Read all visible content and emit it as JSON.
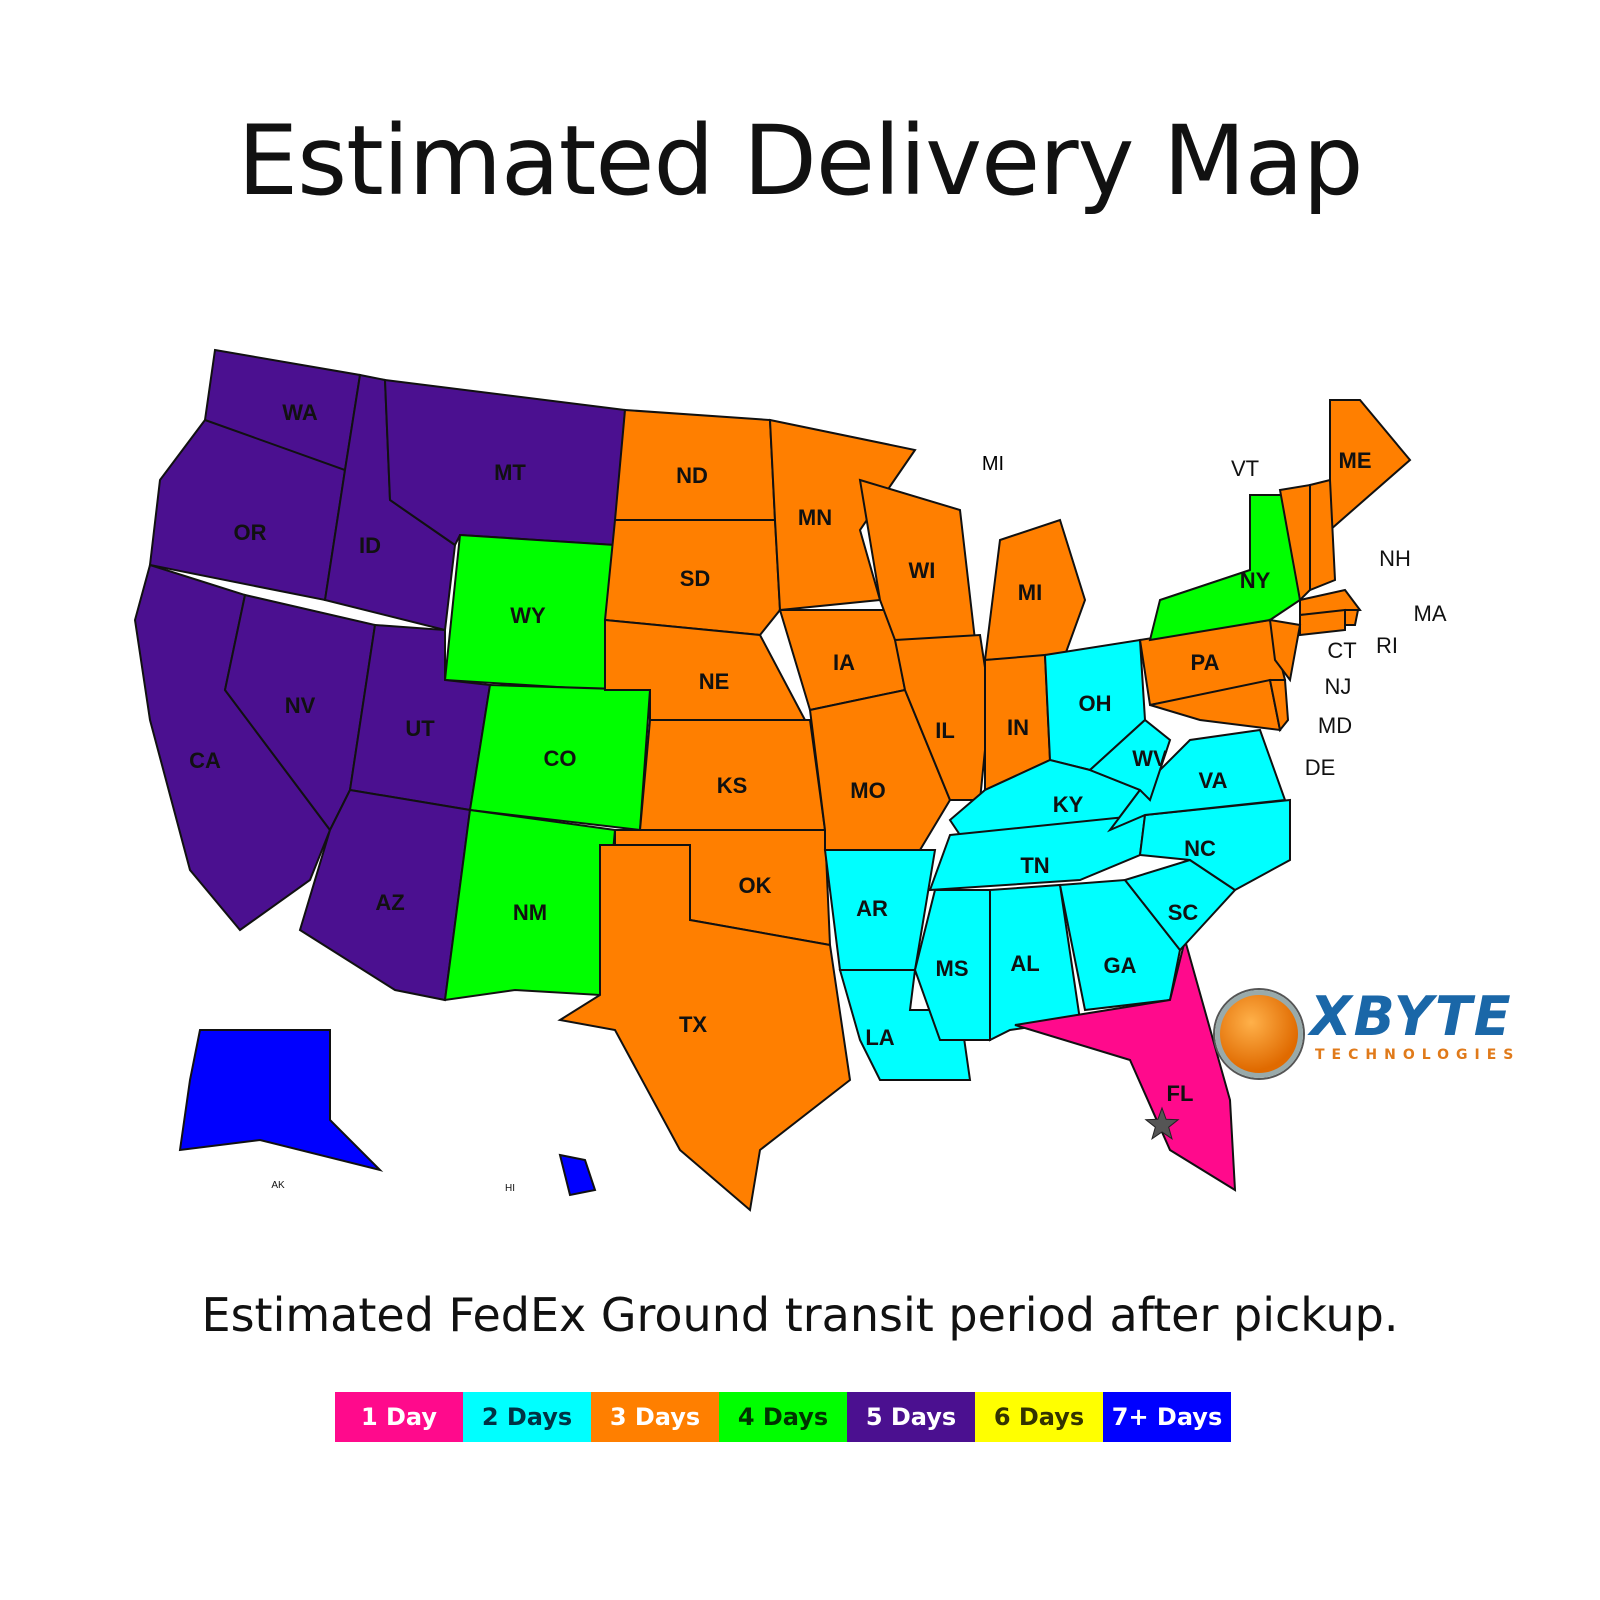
{
  "title": "Estimated Delivery Map",
  "subtitle": "Estimated FedEx Ground transit period after pickup.",
  "legend": [
    {
      "label": "1 Day",
      "days": 1,
      "color": "#ff0a8c",
      "text": "#ffffff"
    },
    {
      "label": "2 Days",
      "days": 2,
      "color": "#00ffff",
      "text": "#003344"
    },
    {
      "label": "3 Days",
      "days": 3,
      "color": "#ff7f00",
      "text": "#ffffff"
    },
    {
      "label": "4 Days",
      "days": 4,
      "color": "#00ff00",
      "text": "#003300"
    },
    {
      "label": "5 Days",
      "days": 5,
      "color": "#4b1090",
      "text": "#ffffff"
    },
    {
      "label": "6 Days",
      "days": 6,
      "color": "#ffff00",
      "text": "#333300"
    },
    {
      "label": "7+ Days",
      "days": 7,
      "color": "#0000ff",
      "text": "#ffffff"
    }
  ],
  "states": [
    {
      "code": "WA",
      "days": 5
    },
    {
      "code": "OR",
      "days": 5
    },
    {
      "code": "CA",
      "days": 5
    },
    {
      "code": "NV",
      "days": 5
    },
    {
      "code": "ID",
      "days": 5
    },
    {
      "code": "MT",
      "days": 5
    },
    {
      "code": "WY",
      "days": 4
    },
    {
      "code": "UT",
      "days": 5
    },
    {
      "code": "AZ",
      "days": 5
    },
    {
      "code": "CO",
      "days": 4
    },
    {
      "code": "NM",
      "days": 4
    },
    {
      "code": "ND",
      "days": 3
    },
    {
      "code": "SD",
      "days": 3
    },
    {
      "code": "NE",
      "days": 3
    },
    {
      "code": "KS",
      "days": 3
    },
    {
      "code": "OK",
      "days": 3
    },
    {
      "code": "TX",
      "days": 3
    },
    {
      "code": "MN",
      "days": 3
    },
    {
      "code": "IA",
      "days": 3
    },
    {
      "code": "MO",
      "days": 3
    },
    {
      "code": "AR",
      "days": 2
    },
    {
      "code": "LA",
      "days": 2
    },
    {
      "code": "WI",
      "days": 3
    },
    {
      "code": "IL",
      "days": 3
    },
    {
      "code": "MI",
      "days": 3
    },
    {
      "code": "IN",
      "days": 3
    },
    {
      "code": "OH",
      "days": 2
    },
    {
      "code": "KY",
      "days": 2
    },
    {
      "code": "TN",
      "days": 2
    },
    {
      "code": "MS",
      "days": 2
    },
    {
      "code": "AL",
      "days": 2
    },
    {
      "code": "GA",
      "days": 2
    },
    {
      "code": "FL",
      "days": 1
    },
    {
      "code": "SC",
      "days": 2
    },
    {
      "code": "NC",
      "days": 2
    },
    {
      "code": "VA",
      "days": 2
    },
    {
      "code": "WV",
      "days": 2
    },
    {
      "code": "PA",
      "days": 3
    },
    {
      "code": "NY",
      "days": 4
    },
    {
      "code": "ME",
      "days": 3
    },
    {
      "code": "VT",
      "days": 3
    },
    {
      "code": "NH",
      "days": 3
    },
    {
      "code": "MA",
      "days": 3
    },
    {
      "code": "RI",
      "days": 3
    },
    {
      "code": "CT",
      "days": 3
    },
    {
      "code": "NJ",
      "days": 3
    },
    {
      "code": "MD",
      "days": 3
    },
    {
      "code": "DE",
      "days": 3
    },
    {
      "code": "AK",
      "days": 7
    },
    {
      "code": "HI",
      "days": 7
    }
  ],
  "extra_labels": {
    "mi_upper": "MI"
  },
  "origin_marker": "star-icon",
  "logo": {
    "brand": "XBYTE",
    "tagline": "TECHNOLOGIES",
    "registered": "®"
  }
}
